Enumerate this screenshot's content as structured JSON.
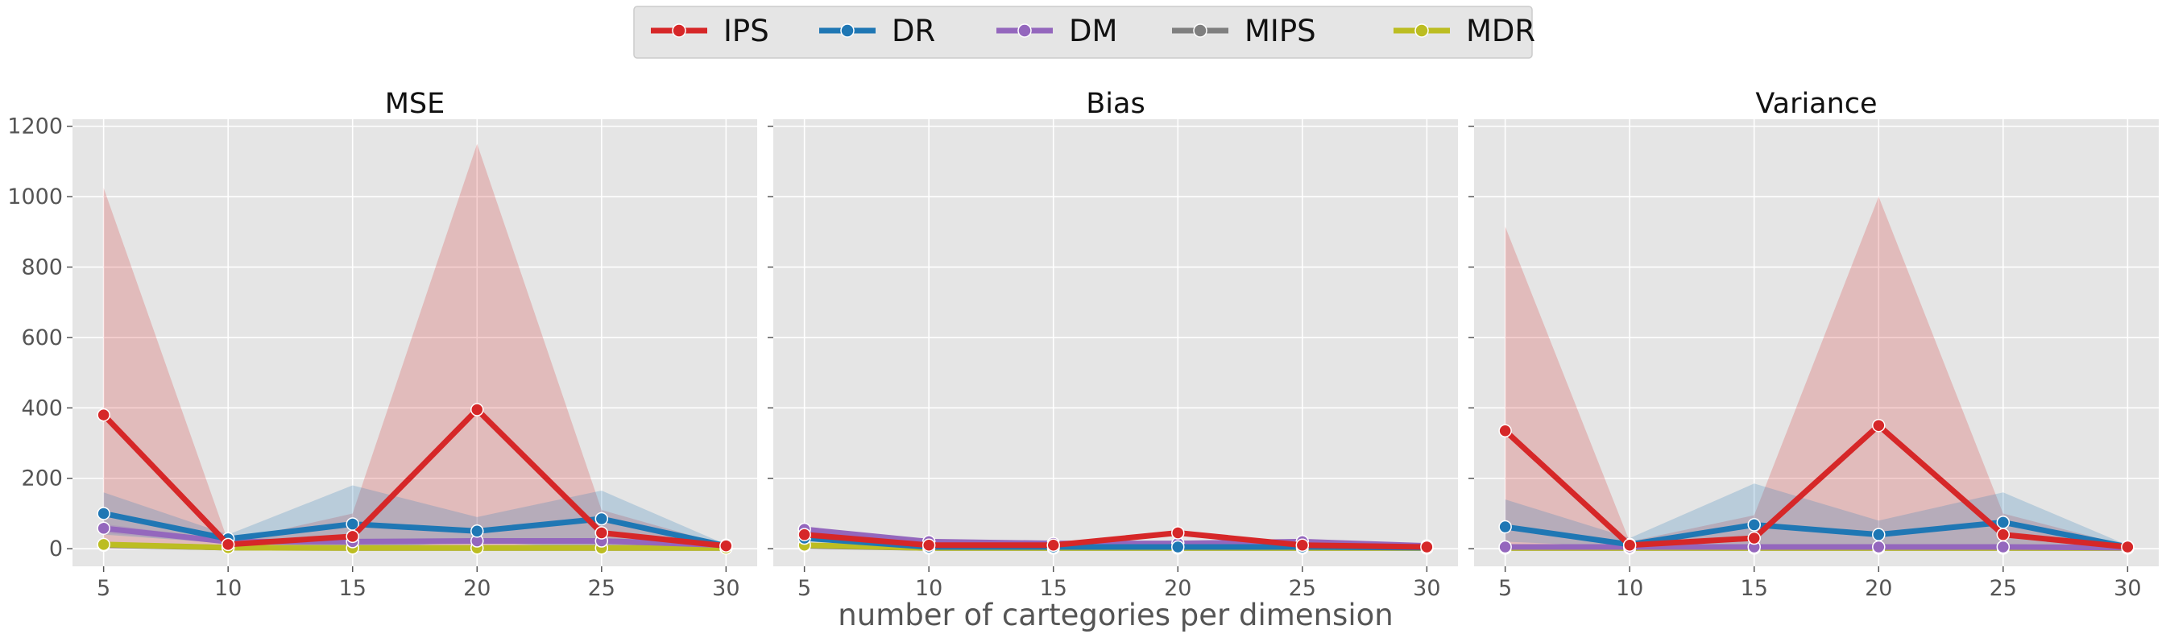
{
  "chart_data": {
    "type": "line",
    "xlabel": "number of cartegories per dimension",
    "x": [
      5,
      10,
      15,
      20,
      25,
      30
    ],
    "xticks": [
      "5",
      "10",
      "15",
      "20",
      "25",
      "30"
    ],
    "ylim": [
      -50,
      1220
    ],
    "yticks": [
      "0",
      "200",
      "400",
      "600",
      "800",
      "1000",
      "1200"
    ],
    "ytick_values": [
      0,
      200,
      400,
      600,
      800,
      1000,
      1200
    ],
    "grid": true,
    "legend_position": "top-center",
    "legend": [
      {
        "name": "IPS",
        "color": "#d62728"
      },
      {
        "name": "DR",
        "color": "#1f77b4"
      },
      {
        "name": "DM",
        "color": "#9467bd"
      },
      {
        "name": "MIPS",
        "color": "#7f7f7f"
      },
      {
        "name": "MDR",
        "color": "#bcbd22"
      }
    ],
    "panels": [
      {
        "title": "MSE",
        "series": [
          {
            "name": "IPS",
            "color": "#d62728",
            "values": [
              380,
              12,
              35,
              395,
              45,
              8
            ],
            "band": {
              "lower": [
                0,
                0,
                0,
                0,
                0,
                0
              ],
              "upper": [
                1025,
                20,
                100,
                1150,
                110,
                10
              ]
            }
          },
          {
            "name": "DR",
            "color": "#1f77b4",
            "values": [
              100,
              28,
              70,
              50,
              85,
              8
            ],
            "band": {
              "lower": [
                40,
                15,
                0,
                20,
                0,
                0
              ],
              "upper": [
                160,
                40,
                180,
                90,
                165,
                12
              ]
            }
          },
          {
            "name": "DM",
            "color": "#9467bd",
            "values": [
              58,
              20,
              20,
              22,
              22,
              10
            ],
            "band": {
              "lower": [
                45,
                15,
                15,
                17,
                17,
                7
              ],
              "upper": [
                70,
                25,
                25,
                27,
                27,
                13
              ]
            }
          },
          {
            "name": "MIPS",
            "color": "#7f7f7f",
            "values": [
              10,
              3,
              2,
              2,
              2,
              2
            ]
          },
          {
            "name": "MDR",
            "color": "#bcbd22",
            "values": [
              12,
              3,
              2,
              2,
              2,
              2
            ]
          }
        ]
      },
      {
        "title": "Bias",
        "series": [
          {
            "name": "IPS",
            "color": "#d62728",
            "values": [
              40,
              10,
              10,
              45,
              10,
              5
            ]
          },
          {
            "name": "DR",
            "color": "#1f77b4",
            "values": [
              30,
              5,
              5,
              5,
              5,
              3
            ]
          },
          {
            "name": "DM",
            "color": "#9467bd",
            "values": [
              55,
              20,
              15,
              15,
              20,
              8
            ]
          },
          {
            "name": "MIPS",
            "color": "#7f7f7f",
            "values": [
              8,
              2,
              2,
              2,
              2,
              2
            ]
          },
          {
            "name": "MDR",
            "color": "#bcbd22",
            "values": [
              10,
              2,
              2,
              2,
              2,
              2
            ]
          }
        ]
      },
      {
        "title": "Variance",
        "series": [
          {
            "name": "IPS",
            "color": "#d62728",
            "values": [
              335,
              10,
              30,
              350,
              40,
              5
            ],
            "band": {
              "lower": [
                0,
                0,
                0,
                0,
                0,
                0
              ],
              "upper": [
                915,
                20,
                95,
                1000,
                100,
                8
              ]
            }
          },
          {
            "name": "DR",
            "color": "#1f77b4",
            "values": [
              62,
              12,
              68,
              40,
              75,
              5
            ],
            "band": {
              "lower": [
                20,
                5,
                0,
                10,
                0,
                0
              ],
              "upper": [
                140,
                30,
                185,
                80,
                160,
                10
              ]
            }
          },
          {
            "name": "DM",
            "color": "#9467bd",
            "values": [
              5,
              5,
              5,
              5,
              5,
              3
            ]
          },
          {
            "name": "MIPS",
            "color": "#7f7f7f",
            "values": [
              2,
              2,
              2,
              2,
              2,
              2
            ]
          },
          {
            "name": "MDR",
            "color": "#bcbd22",
            "values": [
              2,
              2,
              2,
              2,
              2,
              2
            ]
          }
        ]
      }
    ]
  }
}
